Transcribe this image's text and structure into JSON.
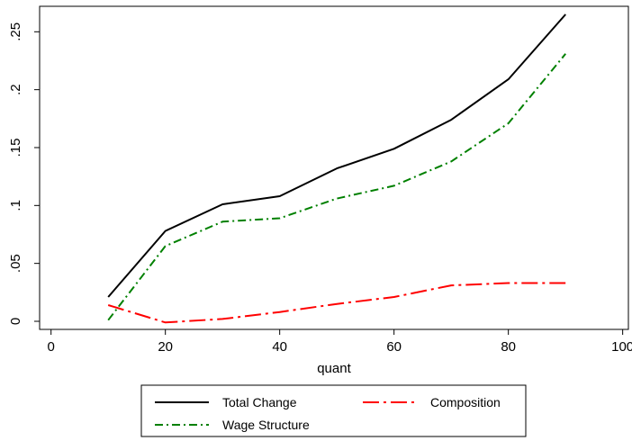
{
  "chart_data": {
    "type": "line",
    "xlabel": "quant",
    "ylabel": "",
    "xlim": [
      -2,
      101
    ],
    "ylim": [
      -0.007,
      0.272
    ],
    "x_ticks": [
      0,
      20,
      40,
      60,
      80,
      100
    ],
    "x_tick_labels": [
      "0",
      "20",
      "40",
      "60",
      "80",
      "100"
    ],
    "y_ticks": [
      0,
      0.05,
      0.1,
      0.15,
      0.2,
      0.25
    ],
    "y_tick_labels": [
      "0",
      ".05",
      ".1",
      ".15",
      ".2",
      ".25"
    ],
    "grid": false,
    "legend_position": "bottom",
    "x": [
      10,
      20,
      30,
      40,
      50,
      60,
      70,
      80,
      90
    ],
    "series": [
      {
        "name": "Total Change",
        "color": "#000000",
        "style": "solid",
        "values": [
          0.021,
          0.078,
          0.101,
          0.108,
          0.132,
          0.149,
          0.174,
          0.209,
          0.265
        ]
      },
      {
        "name": "Composition",
        "color": "#ff0000",
        "style": "dash-dot",
        "values": [
          0.014,
          -0.001,
          0.002,
          0.008,
          0.015,
          0.021,
          0.031,
          0.033,
          0.033
        ]
      },
      {
        "name": "Wage Structure",
        "color": "#008000",
        "style": "dash-dot-fine",
        "values": [
          0.001,
          0.065,
          0.086,
          0.089,
          0.106,
          0.117,
          0.138,
          0.171,
          0.231
        ]
      }
    ]
  }
}
